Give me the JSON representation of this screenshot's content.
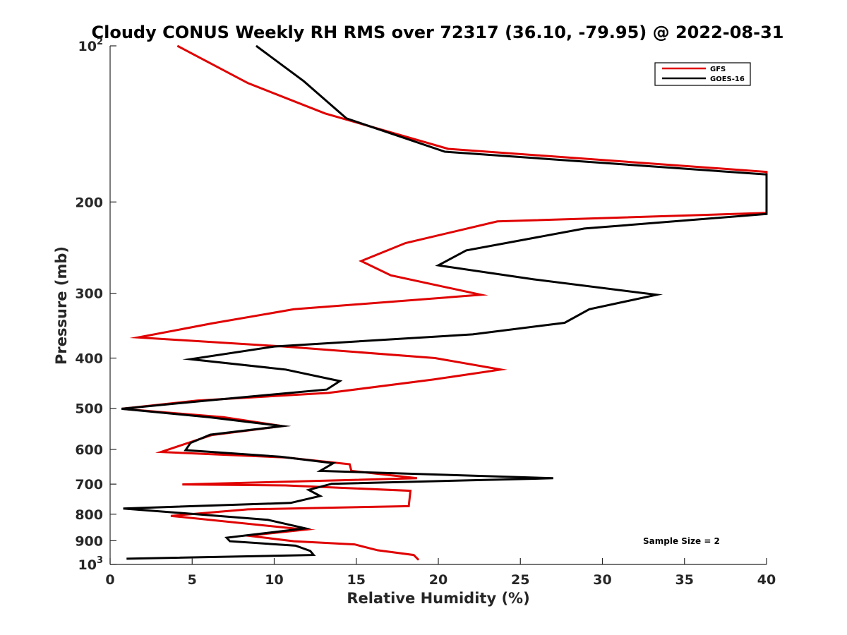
{
  "chart_data": {
    "type": "line",
    "title": "Cloudy CONUS Weekly RH RMS over 72317 (36.10, -79.95) @ 2022-08-31",
    "xlabel": "Relative Humidity (%)",
    "ylabel": "Pressure (mb)",
    "xlim": [
      0,
      40
    ],
    "ylim": [
      100,
      1000
    ],
    "y_scale": "log",
    "y_reversed": true,
    "grid": false,
    "legend_position": "top-right",
    "x_ticks": [
      "0",
      "5",
      "10",
      "15",
      "20",
      "25",
      "30",
      "35",
      "40"
    ],
    "y_ticks": [
      {
        "value": 100,
        "base": "10",
        "sup": "2"
      },
      {
        "value": 200,
        "label": "200"
      },
      {
        "value": 300,
        "label": "300"
      },
      {
        "value": 400,
        "label": "400"
      },
      {
        "value": 500,
        "label": "500"
      },
      {
        "value": 600,
        "label": "600"
      },
      {
        "value": 700,
        "label": "700"
      },
      {
        "value": 800,
        "label": "800"
      },
      {
        "value": 900,
        "label": "900"
      },
      {
        "value": 1000,
        "base": "10",
        "sup": "3"
      }
    ],
    "annotation": "Sample Size = 2",
    "series": [
      {
        "name": "GFS",
        "color": "#e00000",
        "points": [
          [
            4.1,
            100
          ],
          [
            8.4,
            118
          ],
          [
            13.1,
            135
          ],
          [
            20.6,
            158
          ],
          [
            40.0,
            175
          ],
          [
            40.0,
            210
          ],
          [
            23.6,
            218
          ],
          [
            18.0,
            240
          ],
          [
            15.3,
            260
          ],
          [
            17.1,
            277
          ],
          [
            22.6,
            302
          ],
          [
            11.2,
            322
          ],
          [
            6.2,
            343
          ],
          [
            1.7,
            365
          ],
          [
            10.6,
            380
          ],
          [
            19.8,
            400
          ],
          [
            23.8,
            421
          ],
          [
            19.7,
            440
          ],
          [
            13.3,
            467
          ],
          [
            5.3,
            483
          ],
          [
            0.7,
            501
          ],
          [
            6.9,
            520
          ],
          [
            10.5,
            541
          ],
          [
            6.2,
            563
          ],
          [
            3.1,
            607
          ],
          [
            10.7,
            622
          ],
          [
            14.6,
            641
          ],
          [
            14.7,
            660
          ],
          [
            18.7,
            682
          ],
          [
            4.4,
            701
          ],
          [
            10.7,
            704
          ],
          [
            18.3,
            721
          ],
          [
            18.2,
            772
          ],
          [
            8.4,
            783
          ],
          [
            3.7,
            806
          ],
          [
            11.9,
            857
          ],
          [
            8.4,
            880
          ],
          [
            11.2,
            902
          ],
          [
            14.9,
            915
          ],
          [
            16.3,
            939
          ],
          [
            18.5,
            959
          ],
          [
            18.8,
            980
          ]
        ]
      },
      {
        "name": "GOES-16",
        "color": "#000000",
        "points": [
          [
            8.9,
            100
          ],
          [
            11.8,
            117
          ],
          [
            14.4,
            138
          ],
          [
            20.4,
            160
          ],
          [
            40.0,
            177
          ],
          [
            40.0,
            211
          ],
          [
            28.9,
            225
          ],
          [
            21.7,
            248
          ],
          [
            20.0,
            265
          ],
          [
            25.8,
            282
          ],
          [
            33.3,
            302
          ],
          [
            29.2,
            322
          ],
          [
            27.7,
            342
          ],
          [
            22.1,
            360
          ],
          [
            10.0,
            380
          ],
          [
            4.9,
            402
          ],
          [
            10.7,
            421
          ],
          [
            14.0,
            443
          ],
          [
            13.2,
            460
          ],
          [
            5.9,
            483
          ],
          [
            0.7,
            501
          ],
          [
            6.0,
            520
          ],
          [
            10.5,
            541
          ],
          [
            6.1,
            562
          ],
          [
            4.9,
            583
          ],
          [
            4.6,
            602
          ],
          [
            10.4,
            620
          ],
          [
            13.6,
            638
          ],
          [
            12.8,
            660
          ],
          [
            27.0,
            682
          ],
          [
            13.5,
            699
          ],
          [
            12.1,
            718
          ],
          [
            12.8,
            738
          ],
          [
            11.0,
            761
          ],
          [
            0.8,
            780
          ],
          [
            9.6,
            820
          ],
          [
            11.9,
            852
          ],
          [
            7.1,
            888
          ],
          [
            7.3,
            902
          ],
          [
            11.3,
            920
          ],
          [
            12.2,
            942
          ],
          [
            12.4,
            959
          ],
          [
            1.0,
            975
          ]
        ]
      }
    ]
  }
}
